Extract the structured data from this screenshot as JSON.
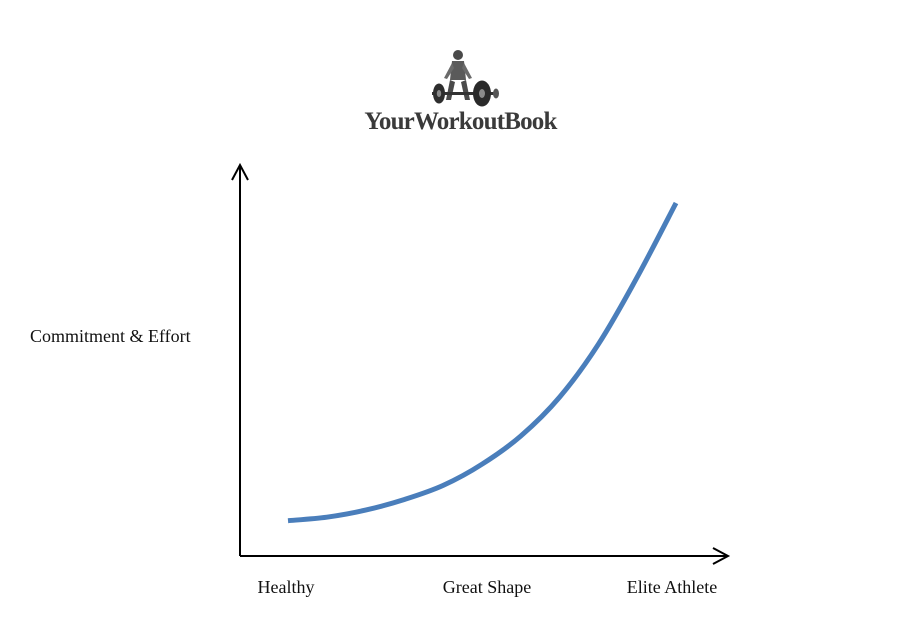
{
  "brand": {
    "name": "YourWorkoutBook",
    "logo_icon": "weightlifter-icon"
  },
  "chart_data": {
    "type": "line",
    "title": "",
    "xlabel": "",
    "ylabel": "Commitment & Effort",
    "categories": [
      "Healthy",
      "Great Shape",
      "Elite Athlete"
    ],
    "x": [
      0,
      0.25,
      0.5,
      0.75,
      1.0
    ],
    "xlim": [
      0,
      1
    ],
    "ylim": [
      0,
      1
    ],
    "series": [
      {
        "name": "",
        "color": "#4a7ebb",
        "points": [
          {
            "x": 0.0,
            "y": 0.1
          },
          {
            "x": 0.1,
            "y": 0.11
          },
          {
            "x": 0.2,
            "y": 0.13
          },
          {
            "x": 0.3,
            "y": 0.16
          },
          {
            "x": 0.4,
            "y": 0.2
          },
          {
            "x": 0.5,
            "y": 0.26
          },
          {
            "x": 0.6,
            "y": 0.34
          },
          {
            "x": 0.7,
            "y": 0.45
          },
          {
            "x": 0.8,
            "y": 0.6
          },
          {
            "x": 0.9,
            "y": 0.79
          },
          {
            "x": 1.0,
            "y": 1.0
          }
        ]
      }
    ],
    "grid": false,
    "legend": "none"
  }
}
